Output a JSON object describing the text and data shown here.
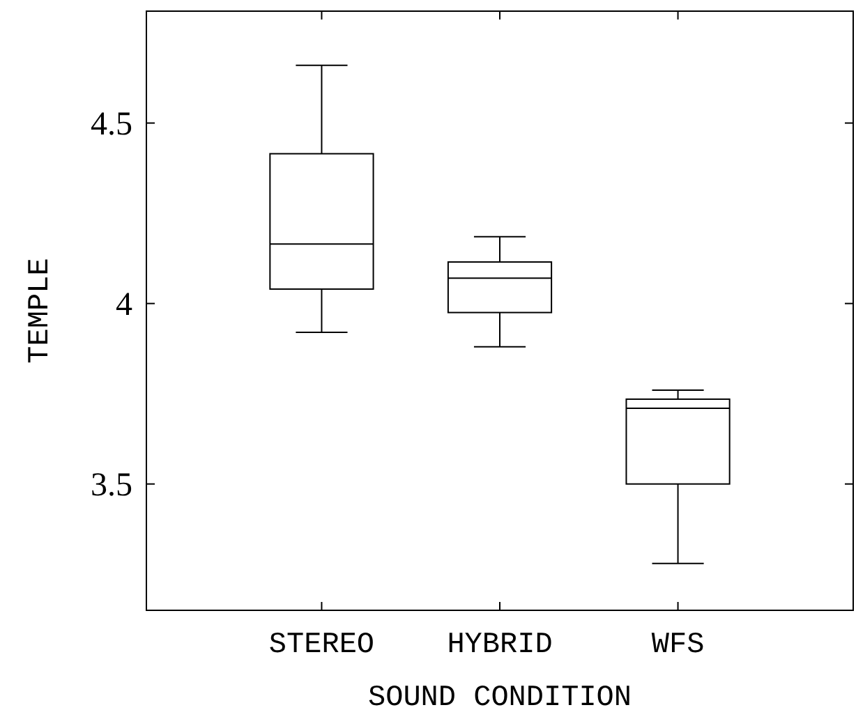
{
  "chart_data": {
    "type": "box",
    "xlabel": "SOUND CONDITION",
    "ylabel": "TEMPLE",
    "categories": [
      "STEREO",
      "HYBRID",
      "WFS"
    ],
    "boxes": [
      {
        "low": 3.92,
        "q1": 4.04,
        "median": 4.165,
        "q3": 4.415,
        "high": 4.66
      },
      {
        "low": 3.88,
        "q1": 3.975,
        "median": 4.07,
        "q3": 4.115,
        "high": 4.185
      },
      {
        "low": 3.28,
        "q1": 3.5,
        "median": 3.71,
        "q3": 3.735,
        "high": 3.76
      }
    ],
    "ylim": [
      3.15,
      4.81
    ],
    "yticks": [
      3.5,
      4,
      4.5
    ],
    "grid": false,
    "color": "#000000"
  }
}
